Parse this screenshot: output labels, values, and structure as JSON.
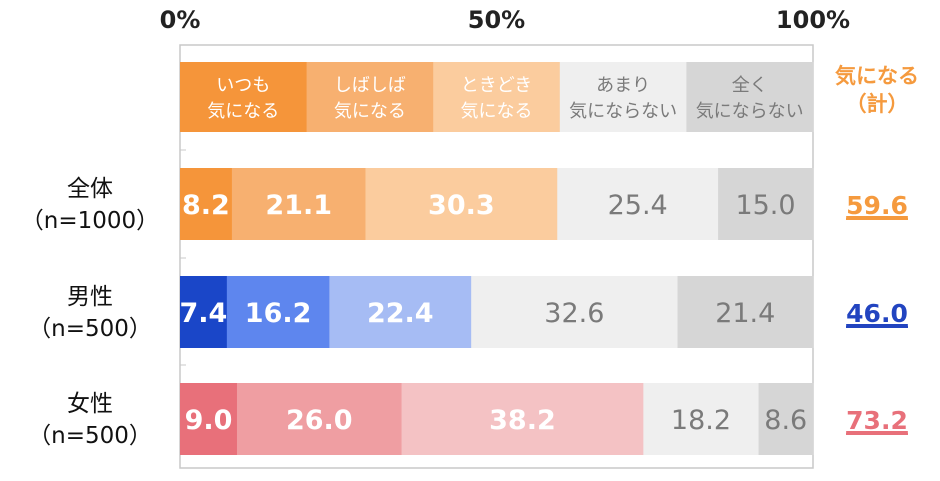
{
  "chart_data": {
    "type": "bar",
    "orientation": "horizontal",
    "stacked": true,
    "x_ticks": [
      "0%",
      "50%",
      "100%"
    ],
    "xlim": [
      0,
      100
    ],
    "legend": {
      "placement": "top",
      "entries": [
        {
          "line1": "いつも",
          "line2": "気になる",
          "color": "#f5953a",
          "text_color": "#ffffff"
        },
        {
          "line1": "しばしば",
          "line2": "気になる",
          "color": "#f7b070",
          "text_color": "#ffffff"
        },
        {
          "line1": "ときどき",
          "line2": "気になる",
          "color": "#fbcc9e",
          "text_color": "#ffffff"
        },
        {
          "line1": "あまり",
          "line2": "気にならない",
          "color": "#efefef",
          "text_color": "#7a7a7a"
        },
        {
          "line1": "全く",
          "line2": "気にならない",
          "color": "#d6d6d6",
          "text_color": "#7a7a7a"
        }
      ]
    },
    "sum_header": {
      "line1": "気になる",
      "line2": "（計）",
      "color": "#f59a3e"
    },
    "categories": [
      {
        "line1": "全体",
        "line2": "（n=1000）"
      },
      {
        "line1": "男性",
        "line2": "（n=500）"
      },
      {
        "line1": "女性",
        "line2": "（n=500）"
      }
    ],
    "rows": [
      {
        "values": [
          8.2,
          21.1,
          30.3,
          25.4,
          15.0
        ],
        "labels": [
          "8.2",
          "21.1",
          "30.3",
          "25.4",
          "15.0"
        ],
        "colors": [
          "#f5953a",
          "#f7b070",
          "#fbcc9e",
          "#efefef",
          "#d6d6d6"
        ],
        "text_colors": [
          "#ffffff",
          "#ffffff",
          "#ffffff",
          "#7a7a7a",
          "#7a7a7a"
        ],
        "sum": "59.6",
        "sum_color": "#f59a3e"
      },
      {
        "values": [
          7.4,
          16.2,
          22.4,
          32.6,
          21.4
        ],
        "labels": [
          "7.4",
          "16.2",
          "22.4",
          "32.6",
          "21.4"
        ],
        "colors": [
          "#1a46c8",
          "#5e86ee",
          "#a6bcf4",
          "#efefef",
          "#d6d6d6"
        ],
        "text_colors": [
          "#ffffff",
          "#ffffff",
          "#ffffff",
          "#7a7a7a",
          "#7a7a7a"
        ],
        "sum": "46.0",
        "sum_color": "#2244c0"
      },
      {
        "values": [
          9.0,
          26.0,
          38.2,
          18.2,
          8.6
        ],
        "labels": [
          "9.0",
          "26.0",
          "38.2",
          "18.2",
          "8.6"
        ],
        "colors": [
          "#e8707a",
          "#ef9ea2",
          "#f4c2c4",
          "#efefef",
          "#d6d6d6"
        ],
        "text_colors": [
          "#ffffff",
          "#ffffff",
          "#ffffff",
          "#7a7a7a",
          "#7a7a7a"
        ],
        "sum": "73.2",
        "sum_color": "#e8707a"
      }
    ]
  }
}
